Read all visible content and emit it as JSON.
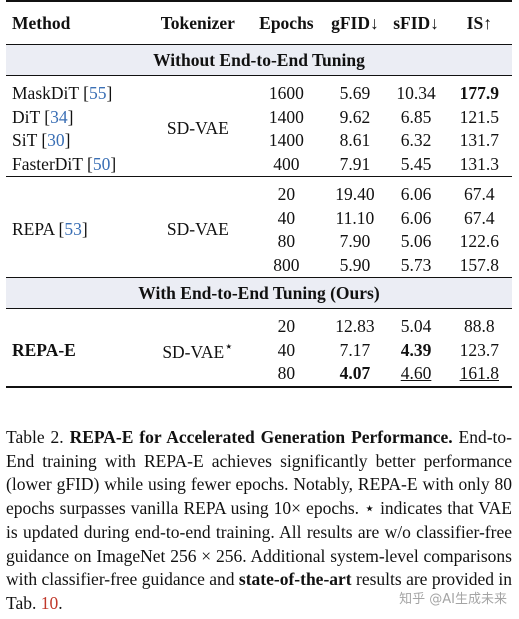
{
  "table": {
    "headers": [
      "Method",
      "Tokenizer",
      "Epochs",
      "gFID↓",
      "sFID↓",
      "IS↑"
    ],
    "section1_title": "Without End-to-End Tuning",
    "section2_title": "With End-to-End Tuning (Ours)",
    "group1": {
      "tokenizer": "SD-VAE",
      "rows": [
        {
          "method": "MaskDiT",
          "cite": "55",
          "epochs": "1600",
          "gfid": "5.69",
          "sfid": "10.34",
          "is": "177.9"
        },
        {
          "method": "DiT",
          "cite": "34",
          "epochs": "1400",
          "gfid": "9.62",
          "sfid": "6.85",
          "is": "121.5"
        },
        {
          "method": "SiT",
          "cite": "30",
          "epochs": "1400",
          "gfid": "8.61",
          "sfid": "6.32",
          "is": "131.7"
        },
        {
          "method": "FasterDiT",
          "cite": "50",
          "epochs": "400",
          "gfid": "7.91",
          "sfid": "5.45",
          "is": "131.3"
        }
      ]
    },
    "group2": {
      "method": "REPA",
      "cite": "53",
      "tokenizer": "SD-VAE",
      "rows": [
        {
          "epochs": "20",
          "gfid": "19.40",
          "sfid": "6.06",
          "is": "67.4"
        },
        {
          "epochs": "40",
          "gfid": "11.10",
          "sfid": "6.06",
          "is": "67.4"
        },
        {
          "epochs": "80",
          "gfid": "7.90",
          "sfid": "5.06",
          "is": "122.6"
        },
        {
          "epochs": "800",
          "gfid": "5.90",
          "sfid": "5.73",
          "is": "157.8"
        }
      ]
    },
    "group3": {
      "method": "REPA-E",
      "tokenizer": "SD-VAE",
      "tokenizer_mark": "⋆",
      "rows": [
        {
          "epochs": "20",
          "gfid": "12.83",
          "sfid": "5.04",
          "is": "88.8"
        },
        {
          "epochs": "40",
          "gfid": "7.17",
          "sfid": "4.39",
          "is": "123.7"
        },
        {
          "epochs": "80",
          "gfid": "4.07",
          "sfid": "4.60",
          "is": "161.8"
        }
      ]
    }
  },
  "caption": {
    "label": "Table 2.",
    "title": "REPA-E for Accelerated Generation Performance.",
    "body1": "End-to-End training with REPA-E achieves significantly better performance (lower gFID) while using fewer epochs. Notably, REPA-E with only 80 epochs surpasses vanilla REPA using 10× epochs. ⋆ indicates that VAE is updated during end-to-end training. All results are w/o classifier-free guidance on ImageNet 256 × 256. Additional system-level comparisons with classifier-free guidance and",
    "bold_phrase": "state-of-the-art",
    "body2": "results are provided in Tab.",
    "ref": "10",
    "end": "."
  },
  "watermark": "知乎 @AI生成未来"
}
